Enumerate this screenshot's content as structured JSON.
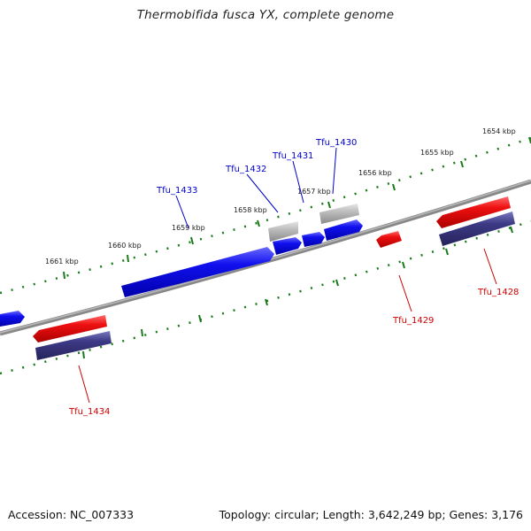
{
  "title": "Thermobifida fusca YX, complete genome",
  "footer": {
    "accession": "Accession: NC_007333",
    "summary": "Topology: circular; Length: 3,642,249 bp; Genes: 3,176"
  },
  "colors": {
    "forward_cds": "#0000ee",
    "reverse_cds": "#ee0000",
    "reverse_gene": "#3d3a86",
    "pseudo": "#b0b0b0",
    "backbone": "#8c8c8c",
    "tick": "#1a7a1a",
    "label_forward": "#0000cc",
    "label_reverse": "#cc0000"
  },
  "scale_labels": [
    "1654 kbp",
    "1655 kbp",
    "1656 kbp",
    "1657 kbp",
    "1658 kbp",
    "1659 kbp",
    "1660 kbp",
    "1661 kbp"
  ],
  "gene_labels": [
    "Tfu_1430",
    "Tfu_1431",
    "Tfu_1432",
    "Tfu_1433",
    "Tfu_1428",
    "Tfu_1429",
    "Tfu_1434"
  ]
}
